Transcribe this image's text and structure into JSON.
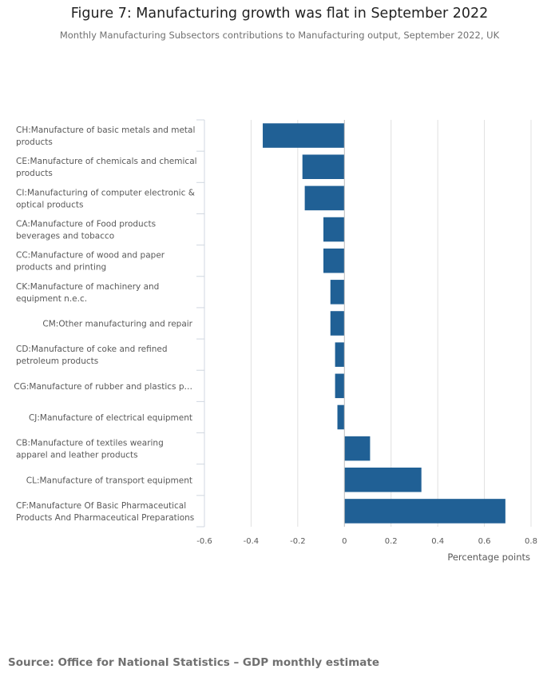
{
  "chart_data": {
    "type": "bar",
    "orientation": "horizontal",
    "title": "Figure 7: Manufacturing growth was flat in September 2022",
    "subtitle": "Monthly Manufacturing Subsectors contributions to Manufacturing output, September 2022, UK",
    "xlabel": "Percentage points",
    "ylabel": "",
    "xlim": [
      -0.6,
      0.8
    ],
    "ticks": [
      "-0.6",
      "-0.4",
      "-0.2",
      "0",
      "0.2",
      "0.4",
      "0.6",
      "0.8"
    ],
    "grid": true,
    "legend": "none",
    "bar_color": "#206095",
    "categories": [
      [
        "CH:Manufacture of basic metals and metal",
        "products"
      ],
      [
        "CE:Manufacture of chemicals and chemical",
        "products"
      ],
      [
        "CI:Manufacturing of computer electronic &",
        "optical products"
      ],
      [
        "CA:Manufacture of Food products",
        "beverages and tobacco"
      ],
      [
        "CC:Manufacture of wood and paper",
        "products and printing"
      ],
      [
        "CK:Manufacture of machinery and",
        "equipment n.e.c."
      ],
      [
        "CM:Other manufacturing and repair"
      ],
      [
        "CD:Manufacture of coke and refined",
        "petroleum products"
      ],
      [
        "CG:Manufacture of rubber and plastics p…"
      ],
      [
        "CJ:Manufacture of electrical equipment"
      ],
      [
        "CB:Manufacture of textiles wearing",
        "apparel and leather products"
      ],
      [
        "CL:Manufacture of transport equipment"
      ],
      [
        "CF:Manufacture Of Basic Pharmaceutical",
        "Products And Pharmaceutical Preparations"
      ]
    ],
    "values": [
      -0.35,
      -0.18,
      -0.17,
      -0.09,
      -0.09,
      -0.06,
      -0.06,
      -0.04,
      -0.04,
      -0.03,
      0.11,
      0.33,
      0.69
    ]
  },
  "source": "Source: Office for National Statistics –  GDP monthly estimate"
}
